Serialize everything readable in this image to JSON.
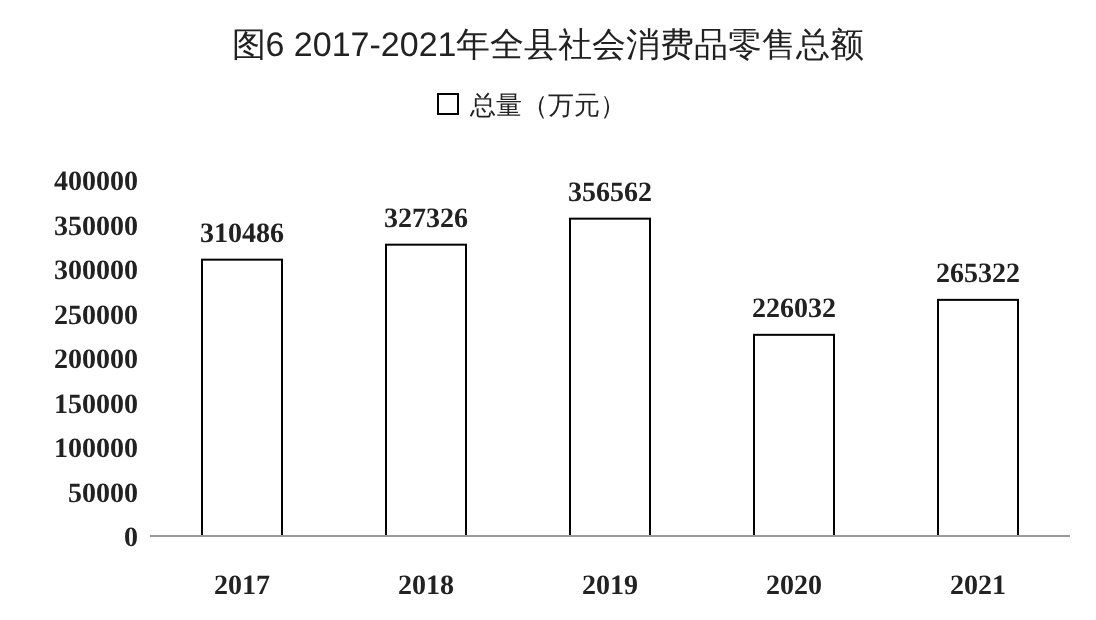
{
  "chart_data": {
    "type": "bar",
    "title": "图6 2017-2021年全县社会消费品零售总额",
    "categories": [
      "2017",
      "2018",
      "2019",
      "2020",
      "2021"
    ],
    "series": [
      {
        "name": "总量（万元）",
        "color": "#ffffff",
        "values": [
          310486,
          327326,
          356562,
          226032,
          265322
        ]
      }
    ],
    "ylim": [
      0,
      400000
    ],
    "yticks": [
      0,
      50000,
      100000,
      150000,
      200000,
      250000,
      300000,
      350000,
      400000
    ],
    "data_labels": true,
    "grid": false,
    "legend": "top"
  }
}
